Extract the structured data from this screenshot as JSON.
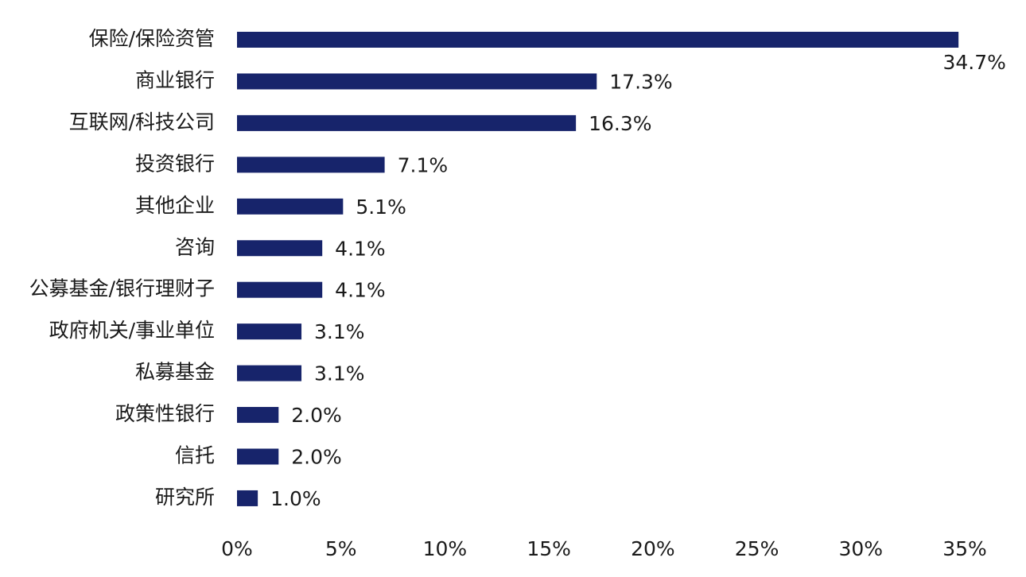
{
  "chart_data": {
    "type": "bar",
    "orientation": "horizontal",
    "categories": [
      "保险/保险资管",
      "商业银行",
      "互联网/科技公司",
      "投资银行",
      "其他企业",
      "咨询",
      "公募基金/银行理财子",
      "政府机关/事业单位",
      "私募基金",
      "政策性银行",
      "信托",
      "研究所"
    ],
    "values": [
      34.7,
      17.3,
      16.3,
      7.1,
      5.1,
      4.1,
      4.1,
      3.1,
      3.1,
      2.0,
      2.0,
      1.0
    ],
    "value_labels": [
      "34.7%",
      "17.3%",
      "16.3%",
      "7.1%",
      "5.1%",
      "4.1%",
      "4.1%",
      "3.1%",
      "3.1%",
      "2.0%",
      "2.0%",
      "1.0%"
    ],
    "color": "#17246b",
    "xlim": [
      0,
      35
    ],
    "xticks": [
      {
        "value": 0,
        "label": "0%"
      },
      {
        "value": 5,
        "label": "5%"
      },
      {
        "value": 10,
        "label": "10%"
      },
      {
        "value": 15,
        "label": "15%"
      },
      {
        "value": 20,
        "label": "20%"
      },
      {
        "value": 25,
        "label": "25%"
      },
      {
        "value": 30,
        "label": "30%"
      },
      {
        "value": 35,
        "label": "35%"
      }
    ],
    "grid": false
  }
}
